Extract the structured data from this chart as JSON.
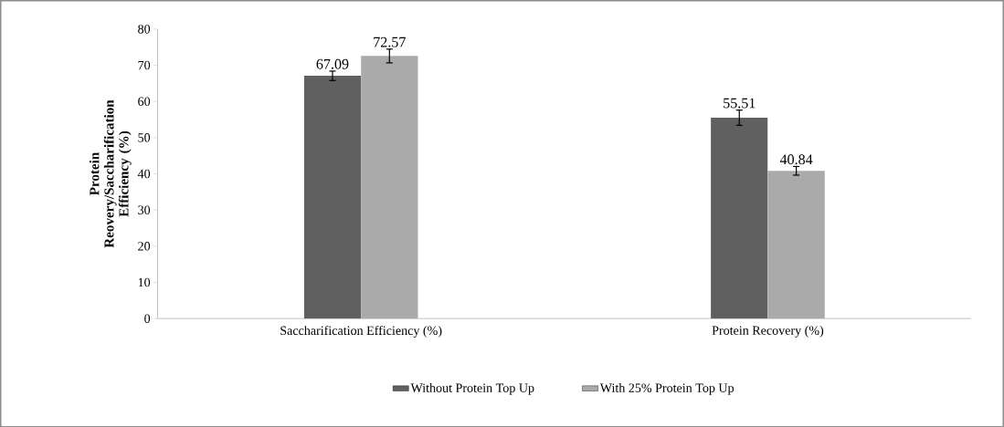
{
  "chart_data": {
    "type": "bar",
    "ylabel": "Protein Reovery/Saccharification Efficiency (%)",
    "categories": [
      "Saccharification Efficiency (%)",
      "Protein Recovery (%)"
    ],
    "series": [
      {
        "name": "Without Protein Top Up",
        "color": "#606060",
        "values": [
          67.09,
          55.51
        ],
        "errors": [
          1.3,
          2.1
        ]
      },
      {
        "name": "With 25% Protein Top Up",
        "color": "#aaaaaa",
        "values": [
          72.57,
          40.84
        ],
        "errors": [
          1.9,
          1.2
        ]
      }
    ],
    "ylim": [
      0,
      80
    ],
    "yticks": [
      0,
      10,
      20,
      30,
      40,
      50,
      60,
      70,
      80
    ],
    "data_labels": true,
    "legend": "bottom"
  }
}
